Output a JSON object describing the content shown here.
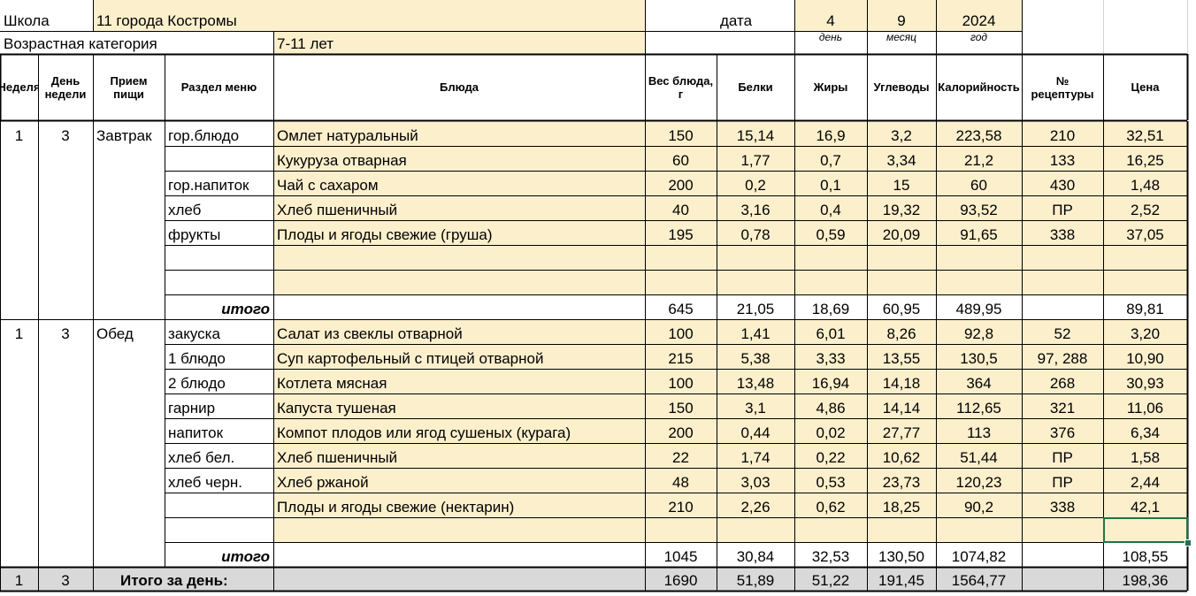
{
  "header": {
    "school_label": "Школа",
    "school_value": "11 города Костромы",
    "date_label": "дата",
    "day": "4",
    "month": "9",
    "year": "2024",
    "day_caption": "день",
    "month_caption": "месяц",
    "year_caption": "год",
    "age_label": "Возрастная категория",
    "age_value": "7-11 лет"
  },
  "columns": [
    "Неделя",
    "День недели",
    "Прием пищи",
    "Раздел меню",
    "Блюда",
    "Вес блюда, г",
    "Белки",
    "Жиры",
    "Углеводы",
    "Калорийность",
    "№ рецептуры",
    "Цена"
  ],
  "meals": [
    {
      "week": "1",
      "day": "3",
      "name": "Завтрак",
      "rows": [
        {
          "section": "гор.блюдо",
          "dish": "Омлет натуральный",
          "weight": "150",
          "protein": "15,14",
          "fat": "16,9",
          "carbs": "3,2",
          "kcal": "223,58",
          "recipe": "210",
          "price": "32,51"
        },
        {
          "section": "",
          "dish": "Кукуруза отварная",
          "weight": "60",
          "protein": "1,77",
          "fat": "0,7",
          "carbs": "3,34",
          "kcal": "21,2",
          "recipe": "133",
          "price": "16,25"
        },
        {
          "section": "гор.напиток",
          "dish": "Чай с сахаром",
          "weight": "200",
          "protein": "0,2",
          "fat": "0,1",
          "carbs": "15",
          "kcal": "60",
          "recipe": "430",
          "price": "1,48"
        },
        {
          "section": "хлеб",
          "dish": "Хлеб пшеничный",
          "weight": "40",
          "protein": "3,16",
          "fat": "0,4",
          "carbs": "19,32",
          "kcal": "93,52",
          "recipe": "ПР",
          "price": "2,52"
        },
        {
          "section": "фрукты",
          "dish": "Плоды и ягоды свежие (груша)",
          "weight": "195",
          "protein": "0,78",
          "fat": "0,59",
          "carbs": "20,09",
          "kcal": "91,65",
          "recipe": "338",
          "price": "37,05"
        },
        {
          "section": "",
          "dish": "",
          "weight": "",
          "protein": "",
          "fat": "",
          "carbs": "",
          "kcal": "",
          "recipe": "",
          "price": ""
        },
        {
          "section": "",
          "dish": "",
          "weight": "",
          "protein": "",
          "fat": "",
          "carbs": "",
          "kcal": "",
          "recipe": "",
          "price": ""
        }
      ],
      "total": {
        "label": "итого",
        "weight": "645",
        "protein": "21,05",
        "fat": "18,69",
        "carbs": "60,95",
        "kcal": "489,95",
        "recipe": "",
        "price": "89,81"
      }
    },
    {
      "week": "1",
      "day": "3",
      "name": "Обед",
      "rows": [
        {
          "section": "закуска",
          "dish": "Салат из свеклы отварной",
          "weight": "100",
          "protein": "1,41",
          "fat": "6,01",
          "carbs": "8,26",
          "kcal": "92,8",
          "recipe": "52",
          "price": "3,20"
        },
        {
          "section": "1 блюдо",
          "dish": "Суп картофельный с птицей отварной",
          "weight": "215",
          "protein": "5,38",
          "fat": "3,33",
          "carbs": "13,55",
          "kcal": "130,5",
          "recipe": "97, 288",
          "price": "10,90"
        },
        {
          "section": "2 блюдо",
          "dish": "Котлета мясная",
          "weight": "100",
          "protein": "13,48",
          "fat": "16,94",
          "carbs": "14,18",
          "kcal": "364",
          "recipe": "268",
          "price": "30,93"
        },
        {
          "section": "гарнир",
          "dish": "Капуста тушеная",
          "weight": "150",
          "protein": "3,1",
          "fat": "4,86",
          "carbs": "14,14",
          "kcal": "112,65",
          "recipe": "321",
          "price": "11,06"
        },
        {
          "section": "напиток",
          "dish": "Компот  плодов или ягод сушеных (курага)",
          "weight": "200",
          "protein": "0,44",
          "fat": "0,02",
          "carbs": "27,77",
          "kcal": "113",
          "recipe": "376",
          "price": "6,34"
        },
        {
          "section": "хлеб бел.",
          "dish": "Хлеб пшеничный",
          "weight": "22",
          "protein": "1,74",
          "fat": "0,22",
          "carbs": "10,62",
          "kcal": "51,44",
          "recipe": "ПР",
          "price": "1,58"
        },
        {
          "section": "хлеб черн.",
          "dish": "Хлеб ржаной",
          "weight": "48",
          "protein": "3,03",
          "fat": "0,53",
          "carbs": "23,73",
          "kcal": "120,23",
          "recipe": "ПР",
          "price": "2,44"
        },
        {
          "section": "",
          "dish": "Плоды и ягоды свежие (нектарин)",
          "weight": "210",
          "protein": "2,26",
          "fat": "0,62",
          "carbs": "18,25",
          "kcal": "90,2",
          "recipe": "338",
          "price": "42,1"
        },
        {
          "section": "",
          "dish": "",
          "weight": "",
          "protein": "",
          "fat": "",
          "carbs": "",
          "kcal": "",
          "recipe": "",
          "price": ""
        }
      ],
      "total": {
        "label": "итого",
        "weight": "1045",
        "protein": "30,84",
        "fat": "32,53",
        "carbs": "130,50",
        "kcal": "1074,82",
        "recipe": "",
        "price": "108,55"
      }
    }
  ],
  "day_total": {
    "week": "1",
    "day": "3",
    "label": "Итого за день:",
    "weight": "1690",
    "protein": "51,89",
    "fat": "51,22",
    "carbs": "191,45",
    "kcal": "1564,77",
    "recipe": "",
    "price": "198,36"
  },
  "colors": {
    "cell_fill": "#fcefcc",
    "total_fill": "#d9d9d9",
    "selection": "#217346"
  }
}
